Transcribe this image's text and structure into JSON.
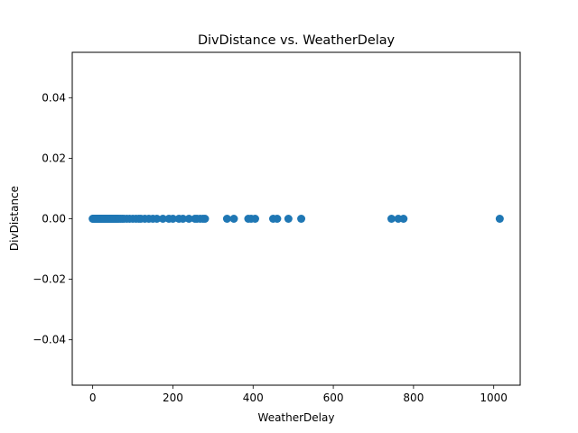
{
  "chart_data": {
    "type": "scatter",
    "title": "DivDistance vs. WeatherDelay",
    "xlabel": "WeatherDelay",
    "ylabel": "DivDistance",
    "xlim": [
      -51,
      1066
    ],
    "ylim": [
      -0.055,
      0.055
    ],
    "x_ticks": [
      0,
      200,
      400,
      600,
      800,
      1000
    ],
    "x_tick_labels": [
      "0",
      "200",
      "400",
      "600",
      "800",
      "1000"
    ],
    "y_ticks": [
      -0.04,
      -0.02,
      0.0,
      0.02,
      0.04
    ],
    "y_tick_labels": [
      "−0.04",
      "−0.02",
      "0.00",
      "0.02",
      "0.04"
    ],
    "grid": false,
    "point_color": "#1f77b4",
    "series": [
      {
        "x": [
          0,
          1,
          2,
          3,
          4,
          5,
          6,
          7,
          8,
          9,
          10,
          11,
          12,
          13,
          14,
          15,
          16,
          17,
          18,
          19,
          20,
          21,
          22,
          23,
          24,
          25,
          26,
          27,
          28,
          29,
          30,
          32,
          34,
          36,
          38,
          40,
          42,
          44,
          46,
          48,
          50,
          52,
          55,
          58,
          60,
          63,
          66,
          70,
          74,
          78,
          85,
          92,
          100,
          108,
          115,
          120,
          130,
          140,
          150,
          160,
          175,
          190,
          200,
          215,
          225,
          240,
          255,
          260,
          268,
          275,
          280,
          335,
          352,
          388,
          395,
          405,
          450,
          460,
          488,
          520,
          745,
          762,
          775,
          1015
        ],
        "y": [
          0,
          0,
          0,
          0,
          0,
          0,
          0,
          0,
          0,
          0,
          0,
          0,
          0,
          0,
          0,
          0,
          0,
          0,
          0,
          0,
          0,
          0,
          0,
          0,
          0,
          0,
          0,
          0,
          0,
          0,
          0,
          0,
          0,
          0,
          0,
          0,
          0,
          0,
          0,
          0,
          0,
          0,
          0,
          0,
          0,
          0,
          0,
          0,
          0,
          0,
          0,
          0,
          0,
          0,
          0,
          0,
          0,
          0,
          0,
          0,
          0,
          0,
          0,
          0,
          0,
          0,
          0,
          0,
          0,
          0,
          0,
          0,
          0,
          0,
          0,
          0,
          0,
          0,
          0,
          0,
          0,
          0,
          0,
          0
        ]
      }
    ]
  }
}
